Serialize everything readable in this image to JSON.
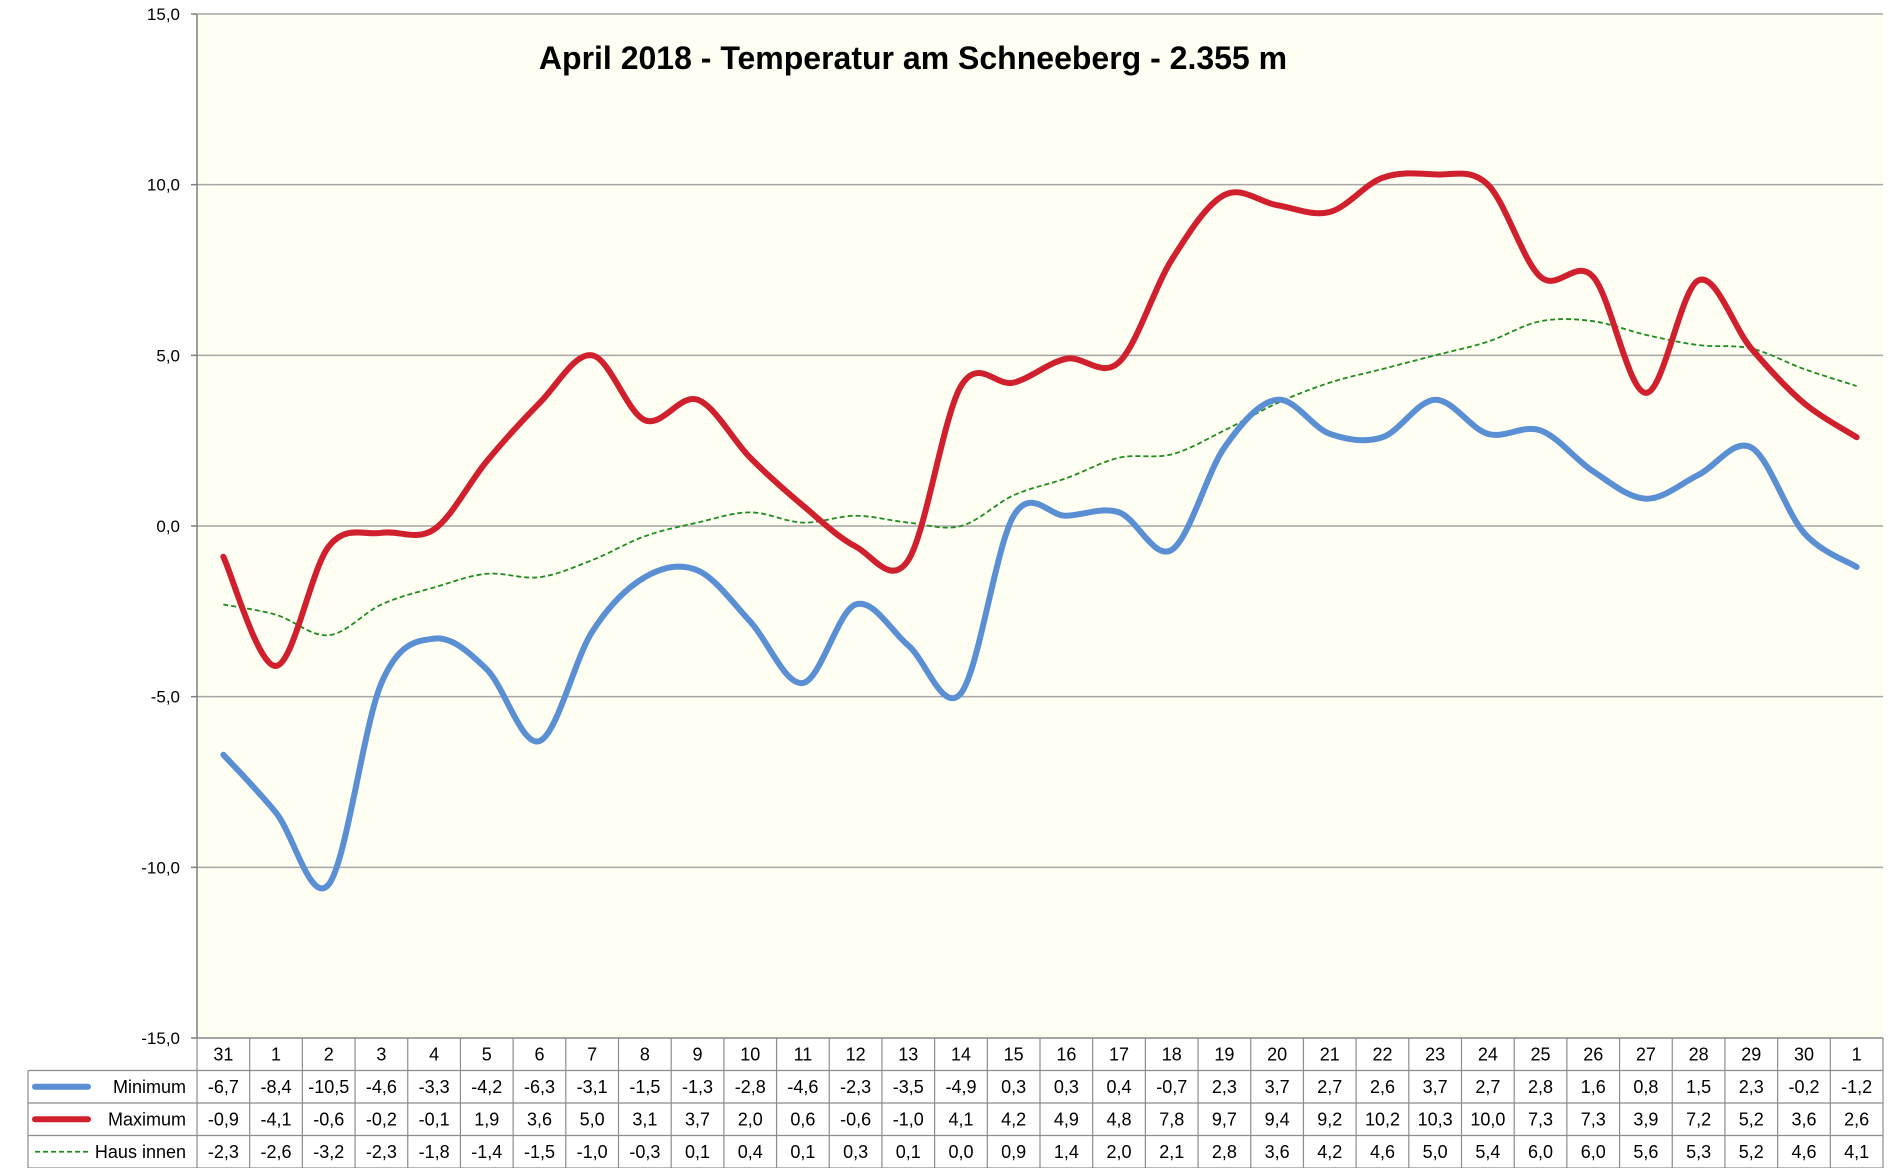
{
  "chart_data": {
    "type": "line",
    "title": "April 2018 - Temperatur am Schneeberg - 2.355 m",
    "xlabel": "",
    "ylabel": "",
    "ylim": [
      -15,
      15
    ],
    "y_ticks": [
      "15,0",
      "10,0",
      "5,0",
      "0,0",
      "-5,0",
      "-10,0",
      "-15,0"
    ],
    "y_tick_values": [
      15,
      10,
      5,
      0,
      -5,
      -10,
      -15
    ],
    "grid": true,
    "legend": "data table below chart",
    "categories": [
      "31",
      "1",
      "2",
      "3",
      "4",
      "5",
      "6",
      "7",
      "8",
      "9",
      "10",
      "11",
      "12",
      "13",
      "14",
      "15",
      "16",
      "17",
      "18",
      "19",
      "20",
      "21",
      "22",
      "23",
      "24",
      "25",
      "26",
      "27",
      "28",
      "29",
      "30",
      "1"
    ],
    "series": [
      {
        "name": "Minimum",
        "color": "#5B8FD4",
        "style": "solid-thick",
        "values": [
          -6.7,
          -8.4,
          -10.5,
          -4.6,
          -3.3,
          -4.2,
          -6.3,
          -3.1,
          -1.5,
          -1.3,
          -2.8,
          -4.6,
          -2.3,
          -3.5,
          -4.9,
          0.3,
          0.3,
          0.4,
          -0.7,
          2.3,
          3.7,
          2.7,
          2.6,
          3.7,
          2.7,
          2.8,
          1.6,
          0.8,
          1.5,
          2.3,
          -0.2,
          -1.2
        ],
        "labels": [
          "-6,7",
          "-8,4",
          "-10,5",
          "-4,6",
          "-3,3",
          "-4,2",
          "-6,3",
          "-3,1",
          "-1,5",
          "-1,3",
          "-2,8",
          "-4,6",
          "-2,3",
          "-3,5",
          "-4,9",
          "0,3",
          "0,3",
          "0,4",
          "-0,7",
          "2,3",
          "3,7",
          "2,7",
          "2,6",
          "3,7",
          "2,7",
          "2,8",
          "1,6",
          "0,8",
          "1,5",
          "2,3",
          "-0,2",
          "-1,2"
        ]
      },
      {
        "name": "Maximum",
        "color": "#D0202E",
        "style": "solid-thick",
        "values": [
          -0.9,
          -4.1,
          -0.6,
          -0.2,
          -0.1,
          1.9,
          3.6,
          5.0,
          3.1,
          3.7,
          2.0,
          0.6,
          -0.6,
          -1.0,
          4.1,
          4.2,
          4.9,
          4.8,
          7.8,
          9.7,
          9.4,
          9.2,
          10.2,
          10.3,
          10.0,
          7.3,
          7.3,
          3.9,
          7.2,
          5.2,
          3.6,
          2.6
        ],
        "labels": [
          "-0,9",
          "-4,1",
          "-0,6",
          "-0,2",
          "-0,1",
          "1,9",
          "3,6",
          "5,0",
          "3,1",
          "3,7",
          "2,0",
          "0,6",
          "-0,6",
          "-1,0",
          "4,1",
          "4,2",
          "4,9",
          "4,8",
          "7,8",
          "9,7",
          "9,4",
          "9,2",
          "10,2",
          "10,3",
          "10,0",
          "7,3",
          "7,3",
          "3,9",
          "7,2",
          "5,2",
          "3,6",
          "2,6"
        ]
      },
      {
        "name": "Haus innen",
        "color": "#1E8C1E",
        "style": "dashed-thin",
        "values": [
          -2.3,
          -2.6,
          -3.2,
          -2.3,
          -1.8,
          -1.4,
          -1.5,
          -1.0,
          -0.3,
          0.1,
          0.4,
          0.1,
          0.3,
          0.1,
          0.0,
          0.9,
          1.4,
          2.0,
          2.1,
          2.8,
          3.6,
          4.2,
          4.6,
          5.0,
          5.4,
          6.0,
          6.0,
          5.6,
          5.3,
          5.2,
          4.6,
          4.1
        ],
        "labels": [
          "-2,3",
          "-2,6",
          "-3,2",
          "-2,3",
          "-1,8",
          "-1,4",
          "-1,5",
          "-1,0",
          "-0,3",
          "0,1",
          "0,4",
          "0,1",
          "0,3",
          "0,1",
          "0,0",
          "0,9",
          "1,4",
          "2,0",
          "2,1",
          "2,8",
          "3,6",
          "4,2",
          "4,6",
          "5,0",
          "5,4",
          "6,0",
          "6,0",
          "5,6",
          "5,3",
          "5,2",
          "4,6",
          "4,1"
        ]
      }
    ],
    "colors": {
      "plot_background": "#FEFEF3",
      "gridline": "#A6A6A6",
      "table_border": "#8C8C8C"
    }
  }
}
